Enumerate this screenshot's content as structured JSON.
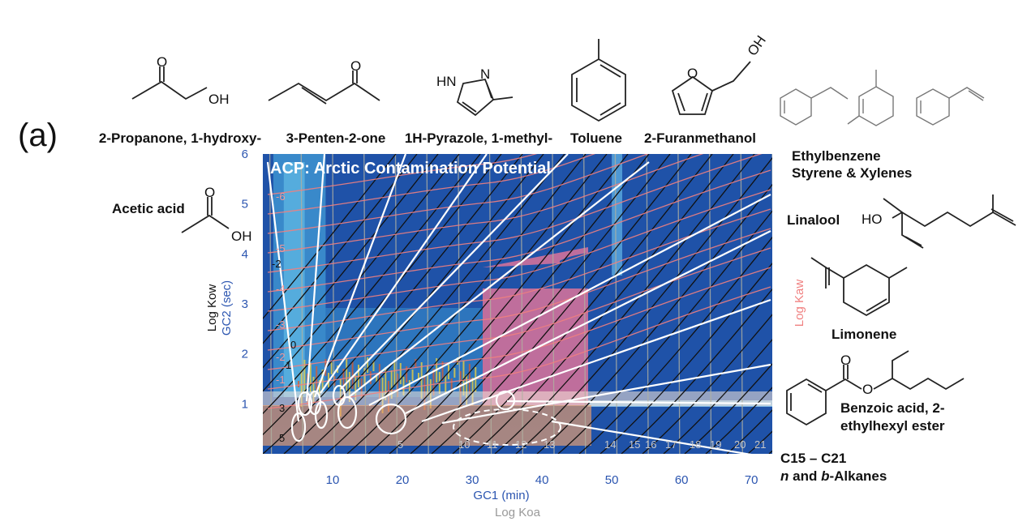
{
  "panel_label": "(a)",
  "chart_data": {
    "type": "heatmap",
    "title": "ACP: Arctic Contamination Potential",
    "xlabel": "GC1 (min)",
    "xlabel2": "Log Koa",
    "ylabel": "GC2 (sec)",
    "ylabel2": "Log Kow",
    "ylabel_right": "Log Kaw",
    "xlim": [
      0,
      73
    ],
    "ylim": [
      0,
      6
    ],
    "x_ticks": [
      "10",
      "20",
      "30",
      "40",
      "50",
      "60",
      "70"
    ],
    "y_ticks": [
      "1",
      "2",
      "3",
      "4",
      "5",
      "6"
    ],
    "log_kow_labels": [
      "-2",
      "0",
      "1",
      "3",
      "5"
    ],
    "log_kaw_labels": [
      "-6",
      "-5",
      "-4",
      "-3",
      "-2",
      "-1"
    ],
    "log_koa_labels": [
      "5",
      "10",
      "11",
      "12",
      "13",
      "14",
      "15",
      "16",
      "17",
      "18",
      "19",
      "20",
      "21"
    ],
    "contamination_region": {
      "color": "#e86a8f"
    },
    "colors": {
      "background": "#1a4fa0",
      "kow_contour": "#111111",
      "kaw_contour": "#f08080",
      "koa_gridline": "#b0b0a0",
      "highlight": "#ffffff"
    }
  },
  "compounds": {
    "acetol": "2-Propanone, 1-hydroxy-",
    "pentenone": "3-Penten-2-one",
    "pyrazole": "1H-Pyrazole, 1-methyl-",
    "toluene": "Toluene",
    "furanmethanol": "2-Furanmethanol",
    "acetic_acid": "Acetic acid",
    "ethylbenzene": "Ethylbenzene",
    "styrene_xylenes": "Styrene & Xylenes",
    "linalool": "Linalool",
    "limonene": "Limonene",
    "benzoate_line1": "Benzoic acid, 2-",
    "benzoate_line2": "ethylhexyl ester",
    "alkanes_line1": "C15 – C21",
    "alkanes_line2_italic_n": "n",
    "alkanes_line2_mid": " and ",
    "alkanes_line2_italic_b": "b",
    "alkanes_line2_end": "-Alkanes"
  },
  "atoms": {
    "O": "O",
    "OH": "OH",
    "HN": "HN",
    "N": "N",
    "HO": "HO"
  }
}
